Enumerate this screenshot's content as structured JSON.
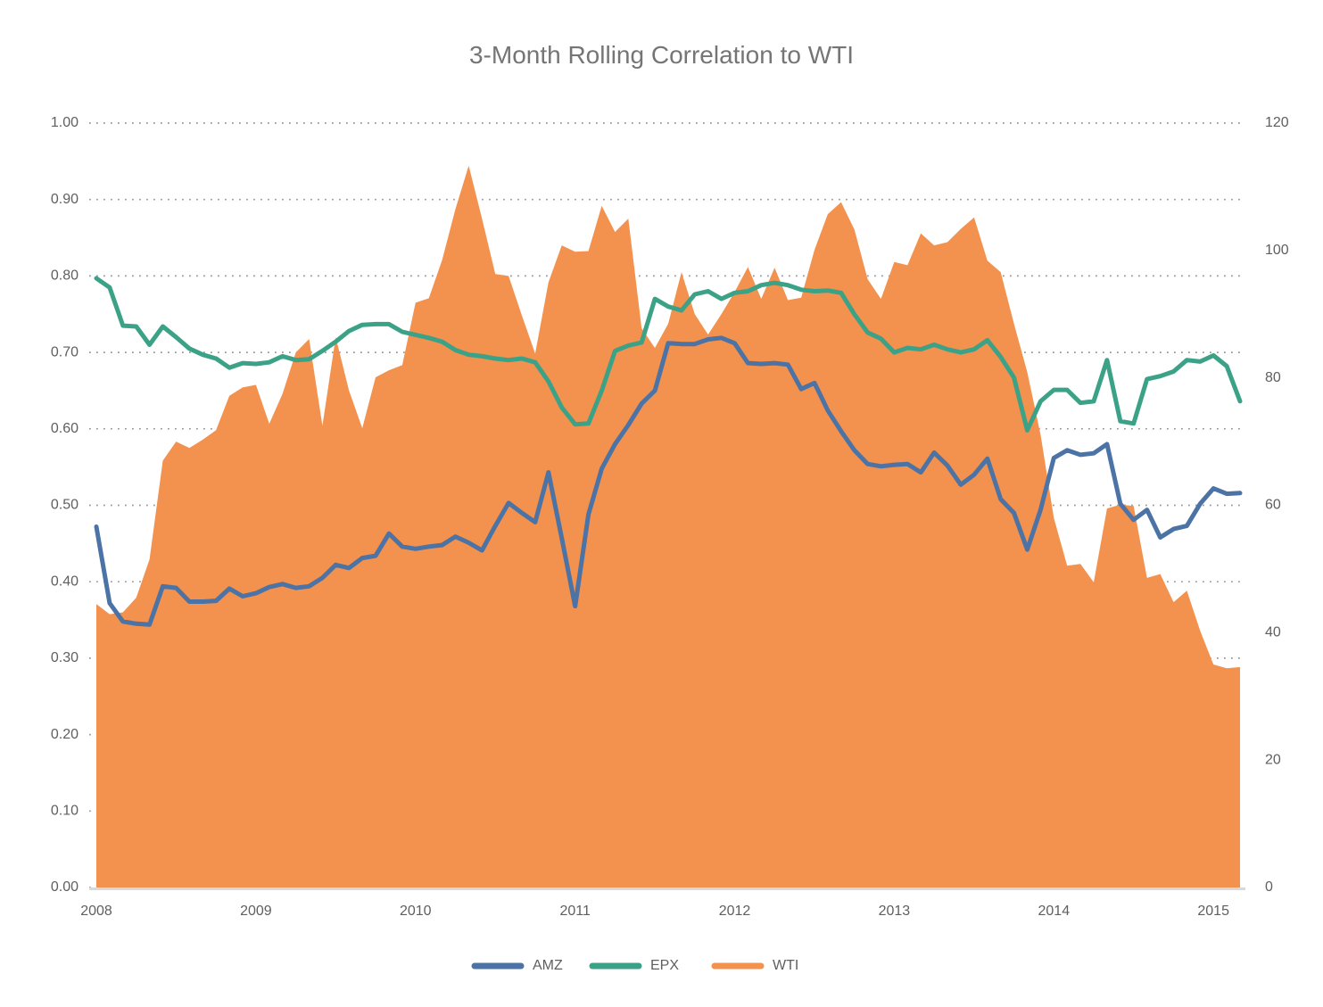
{
  "chart": {
    "title": "3-Month Rolling Correlation to WTI"
  },
  "legend": {
    "items": [
      "AMZ",
      "EPX",
      "WTI"
    ]
  },
  "chart_data": {
    "type": "line-area-combo",
    "title": "3-Month Rolling Correlation to WTI",
    "x_frequency": "monthly",
    "x_start": "2008-01",
    "x_end": "2015-03",
    "x_year_ticks": [
      "2008",
      "2009",
      "2010",
      "2011",
      "2012",
      "2013",
      "2014",
      "2015"
    ],
    "grid": "horizontal-dotted",
    "legend_position": "bottom-center",
    "left_axis": {
      "min": 0,
      "max": 1,
      "ticks": [
        "0.00",
        "0.10",
        "0.20",
        "0.30",
        "0.40",
        "0.50",
        "0.60",
        "0.70",
        "0.80",
        "0.90",
        "1.00"
      ]
    },
    "right_axis": {
      "min": 0,
      "max": 120,
      "ticks": [
        "0",
        "20",
        "40",
        "60",
        "80",
        "100",
        "120"
      ]
    },
    "colors": {
      "amz": "#4B73A5",
      "epx": "#3CA287",
      "wti": "#F3914E",
      "grid": "#9a9a9a",
      "axis_text": "#5f5f5f",
      "title_text": "#757575",
      "baseline": "#d9d9d9"
    },
    "series": [
      {
        "name": "AMZ",
        "type": "line",
        "axis": "left",
        "color": "#4B73A5",
        "values": [
          0.472,
          0.372,
          0.348,
          0.345,
          0.344,
          0.394,
          0.392,
          0.374,
          0.374,
          0.375,
          0.391,
          0.381,
          0.385,
          0.393,
          0.397,
          0.392,
          0.394,
          0.405,
          0.422,
          0.418,
          0.431,
          0.434,
          0.463,
          0.446,
          0.443,
          0.446,
          0.448,
          0.459,
          0.451,
          0.441,
          0.473,
          0.503,
          0.49,
          0.478,
          0.543,
          0.457,
          0.368,
          0.488,
          0.548,
          0.58,
          0.605,
          0.633,
          0.65,
          0.712,
          0.711,
          0.711,
          0.717,
          0.719,
          0.712,
          0.686,
          0.685,
          0.686,
          0.684,
          0.652,
          0.66,
          0.624,
          0.597,
          0.572,
          0.554,
          0.551,
          0.553,
          0.554,
          0.543,
          0.569,
          0.552,
          0.527,
          0.54,
          0.561,
          0.508,
          0.49,
          0.442,
          0.494,
          0.562,
          0.572,
          0.566,
          0.568,
          0.58,
          0.502,
          0.481,
          0.494,
          0.458,
          0.469,
          0.473,
          0.502,
          0.522,
          0.515,
          0.516
        ]
      },
      {
        "name": "EPX",
        "type": "line",
        "axis": "left",
        "color": "#3CA287",
        "values": [
          0.797,
          0.785,
          0.735,
          0.734,
          0.71,
          0.734,
          0.72,
          0.705,
          0.697,
          0.692,
          0.68,
          0.686,
          0.685,
          0.687,
          0.695,
          0.69,
          0.691,
          0.702,
          0.714,
          0.728,
          0.736,
          0.737,
          0.737,
          0.727,
          0.723,
          0.719,
          0.714,
          0.703,
          0.697,
          0.695,
          0.692,
          0.69,
          0.692,
          0.687,
          0.662,
          0.628,
          0.606,
          0.607,
          0.65,
          0.702,
          0.709,
          0.713,
          0.77,
          0.76,
          0.755,
          0.776,
          0.78,
          0.77,
          0.778,
          0.78,
          0.788,
          0.791,
          0.788,
          0.782,
          0.78,
          0.781,
          0.778,
          0.75,
          0.726,
          0.718,
          0.7,
          0.706,
          0.704,
          0.71,
          0.704,
          0.7,
          0.704,
          0.716,
          0.694,
          0.667,
          0.598,
          0.636,
          0.651,
          0.651,
          0.634,
          0.636,
          0.69,
          0.61,
          0.607,
          0.665,
          0.669,
          0.675,
          0.69,
          0.688,
          0.696,
          0.682,
          0.636
        ]
      },
      {
        "name": "WTI",
        "type": "area",
        "axis": "right",
        "color": "#F3914E",
        "values": [
          44.5,
          42.9,
          43.2,
          45.5,
          51.5,
          67.0,
          70.0,
          69.0,
          70.3,
          71.8,
          77.2,
          78.5,
          78.9,
          72.8,
          77.5,
          84.0,
          86.1,
          72.5,
          86.4,
          78.0,
          72.1,
          80.1,
          81.2,
          82.0,
          91.8,
          92.5,
          98.5,
          106.5,
          113.3,
          105.0,
          96.3,
          96.0,
          89.8,
          83.8,
          95.0,
          100.8,
          99.8,
          99.9,
          107.0,
          102.9,
          105.0,
          87.8,
          84.7,
          88.5,
          96.6,
          90.0,
          86.8,
          90.0,
          93.5,
          97.4,
          92.4,
          97.3,
          92.2,
          92.6,
          100.1,
          105.7,
          107.6,
          103.3,
          95.5,
          92.4,
          98.2,
          97.7,
          102.7,
          100.8,
          101.3,
          103.4,
          105.2,
          98.4,
          96.6,
          88.5,
          80.9,
          71.1,
          58.0,
          50.5,
          50.8,
          47.9,
          59.5,
          60.1,
          59.9,
          48.6,
          49.2,
          44.8,
          46.6,
          40.3,
          35.0,
          34.4,
          34.6
        ]
      }
    ]
  }
}
